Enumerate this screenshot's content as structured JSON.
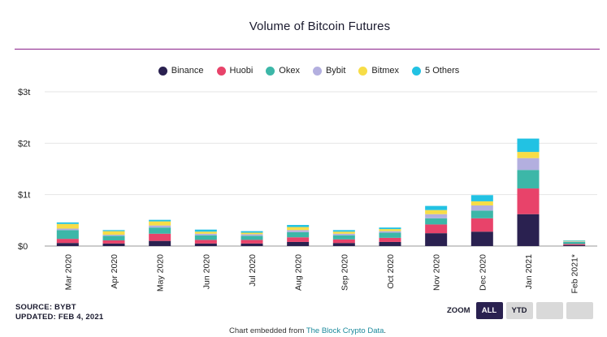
{
  "chart_data": {
    "type": "bar",
    "stacked": true,
    "title": "Volume of Bitcoin Futures",
    "xlabel": "",
    "ylabel": "",
    "ylim": [
      0,
      3
    ],
    "yticks": [
      0,
      1,
      2,
      3
    ],
    "ytick_labels": [
      "$0",
      "$1t",
      "$2t",
      "$3t"
    ],
    "categories": [
      "Mar 2020",
      "Apr 2020",
      "May 2020",
      "Jun 2020",
      "Jul 2020",
      "Aug 2020",
      "Sep 2020",
      "Oct 2020",
      "Nov 2020",
      "Dec 2020",
      "Jan 2021",
      "Feb 2021*"
    ],
    "series": [
      {
        "name": "Binance",
        "color": "#2a2150",
        "values": [
          0.06,
          0.05,
          0.1,
          0.05,
          0.05,
          0.08,
          0.06,
          0.08,
          0.25,
          0.28,
          0.62,
          0.02
        ]
      },
      {
        "name": "Huobi",
        "color": "#e8436a",
        "values": [
          0.08,
          0.06,
          0.14,
          0.07,
          0.07,
          0.09,
          0.07,
          0.08,
          0.17,
          0.26,
          0.5,
          0.02
        ]
      },
      {
        "name": "Okex",
        "color": "#3cb7a8",
        "values": [
          0.17,
          0.09,
          0.12,
          0.09,
          0.08,
          0.1,
          0.08,
          0.1,
          0.12,
          0.15,
          0.36,
          0.04
        ]
      },
      {
        "name": "Bybit",
        "color": "#b3afdf",
        "values": [
          0.03,
          0.02,
          0.04,
          0.03,
          0.03,
          0.04,
          0.03,
          0.03,
          0.08,
          0.1,
          0.23,
          0.01
        ]
      },
      {
        "name": "Bitmex",
        "color": "#f7dd47",
        "values": [
          0.09,
          0.07,
          0.08,
          0.04,
          0.03,
          0.06,
          0.04,
          0.04,
          0.08,
          0.08,
          0.12,
          0.01
        ]
      },
      {
        "name": "5 Others",
        "color": "#22c2e3",
        "values": [
          0.03,
          0.02,
          0.03,
          0.04,
          0.03,
          0.04,
          0.03,
          0.03,
          0.08,
          0.12,
          0.26,
          0.01
        ]
      }
    ]
  },
  "footer": {
    "source": "SOURCE: BYBT",
    "updated": "UPDATED: FEB 4, 2021"
  },
  "zoom": {
    "label": "ZOOM",
    "buttons": [
      {
        "label": "ALL",
        "active": true
      },
      {
        "label": "YTD",
        "active": false
      },
      {
        "label": "",
        "active": false
      },
      {
        "label": "",
        "active": false
      }
    ]
  },
  "embed": {
    "prefix": "Chart embedded from ",
    "link": "The Block Crypto Data",
    "suffix": "."
  }
}
